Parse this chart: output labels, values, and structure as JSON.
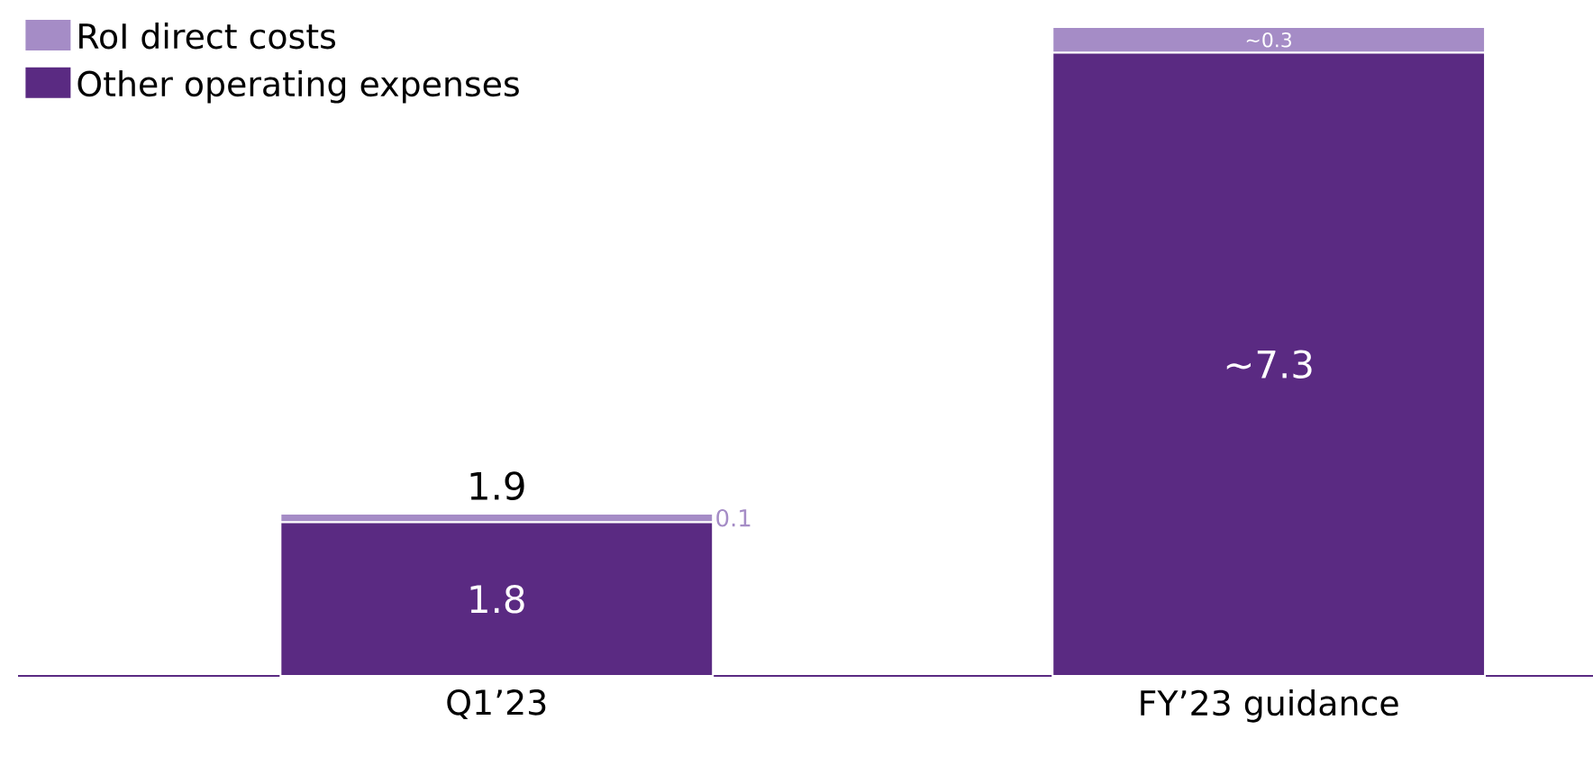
{
  "chart_data": {
    "type": "bar",
    "stacked": true,
    "categories": [
      "Q1’23",
      "FY’23 guidance"
    ],
    "series": [
      {
        "name": "Other operating expenses",
        "color": "#5a2a82",
        "values": [
          1.8,
          7.3
        ],
        "value_labels": [
          "1.8",
          "~7.3"
        ]
      },
      {
        "name": "RoI direct costs",
        "color": "#a58cc6",
        "values": [
          0.1,
          0.3
        ],
        "value_labels": [
          "0.1",
          "~0.3"
        ]
      }
    ],
    "totals": [
      "1.9",
      null
    ],
    "legend": "top left"
  }
}
